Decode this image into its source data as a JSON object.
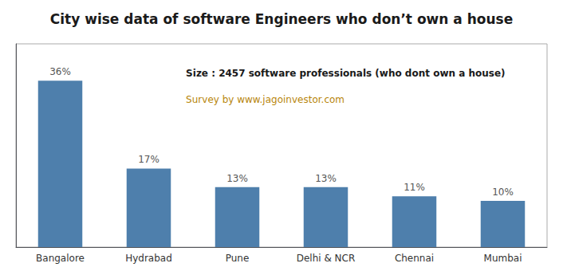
{
  "chart_data": {
    "type": "bar",
    "title": "City wise data of software Engineers who don’t own a house",
    "categories": [
      "Bangalore",
      "Hydrabad",
      "Pune",
      "Delhi & NCR",
      "Chennai",
      "Mumbai"
    ],
    "values": [
      36,
      17,
      13,
      13,
      11,
      10
    ],
    "value_labels": [
      "36%",
      "17%",
      "13%",
      "13%",
      "11%",
      "10%"
    ],
    "color": "#4e7fac",
    "ylim": [
      0,
      44
    ],
    "grid": false,
    "data_labels": true,
    "tick_labels": "x",
    "annotations": [
      "Size : 2457 software professionals (who dont own a house)",
      "Survey by www.jagoinvestor.com"
    ]
  }
}
